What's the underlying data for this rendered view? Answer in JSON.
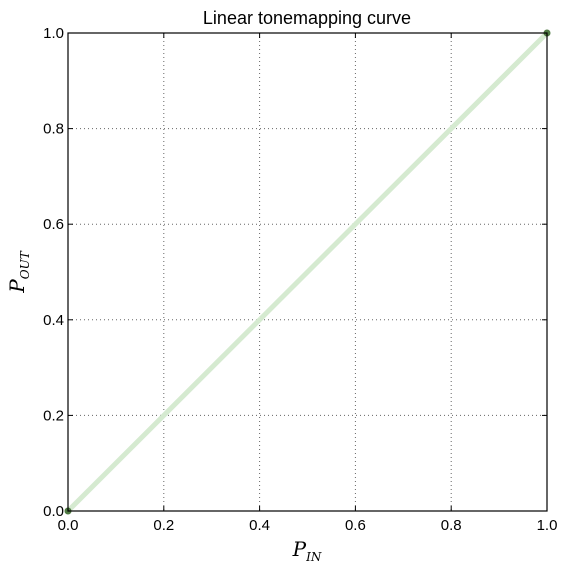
{
  "chart_data": {
    "type": "line",
    "title": "Linear tonemapping curve",
    "xlabel": {
      "main": "P",
      "sub": "IN"
    },
    "ylabel": {
      "main": "P",
      "sub": "OUT"
    },
    "xlim": [
      0.0,
      1.0
    ],
    "ylim": [
      0.0,
      1.0
    ],
    "xticks": [
      0.0,
      0.2,
      0.4,
      0.6,
      0.8,
      1.0
    ],
    "yticks": [
      0.0,
      0.2,
      0.4,
      0.6,
      0.8,
      1.0
    ],
    "xtick_labels": [
      "0.0",
      "0.2",
      "0.4",
      "0.6",
      "0.8",
      "1.0"
    ],
    "ytick_labels": [
      "0.0",
      "0.2",
      "0.4",
      "0.6",
      "0.8",
      "1.0"
    ],
    "grid": true,
    "legend": "none",
    "series": [
      {
        "x": [
          0.0,
          1.0
        ],
        "y": [
          0.0,
          1.0
        ],
        "color": "#d5ead0",
        "marker_color": "#4f7a43"
      }
    ]
  }
}
